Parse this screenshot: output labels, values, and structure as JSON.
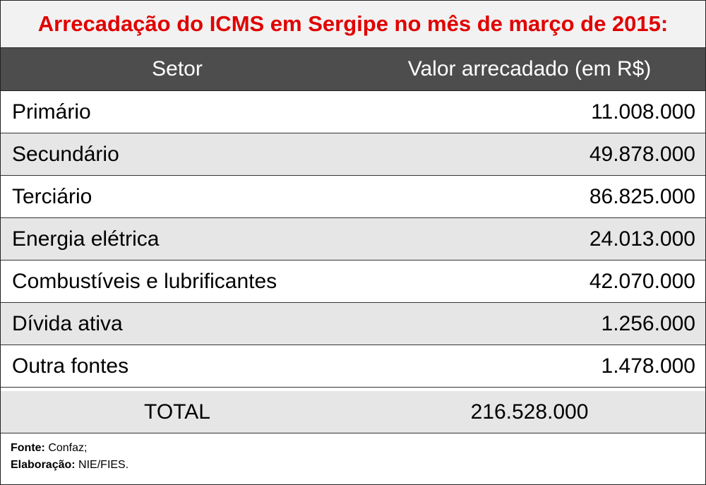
{
  "title": "Arrecadação do ICMS em Sergipe no mês de março de 2015:",
  "header": {
    "setor": "Setor",
    "valor": "Valor arrecadado (em R$)"
  },
  "rows": [
    {
      "setor": "Primário",
      "valor": "11.008.000"
    },
    {
      "setor": "Secundário",
      "valor": "49.878.000"
    },
    {
      "setor": "Terciário",
      "valor": "86.825.000"
    },
    {
      "setor": "Energia elétrica",
      "valor": "24.013.000"
    },
    {
      "setor": "Combustíveis e lubrificantes",
      "valor": "42.070.000"
    },
    {
      "setor": "Dívida ativa",
      "valor": "1.256.000"
    },
    {
      "setor": "Outra fontes",
      "valor": "1.478.000"
    }
  ],
  "total": {
    "label": "TOTAL",
    "valor": "216.528.000"
  },
  "footer": {
    "fonte_label": "Fonte:",
    "fonte_value": "Confaz;",
    "elaboracao_label": "Elaboração:",
    "elaboracao_value": "NIE/FIES."
  },
  "colors": {
    "title": "#e00000",
    "header_bg": "#4d4d4d",
    "alt_row_bg": "#e6e6e6"
  }
}
